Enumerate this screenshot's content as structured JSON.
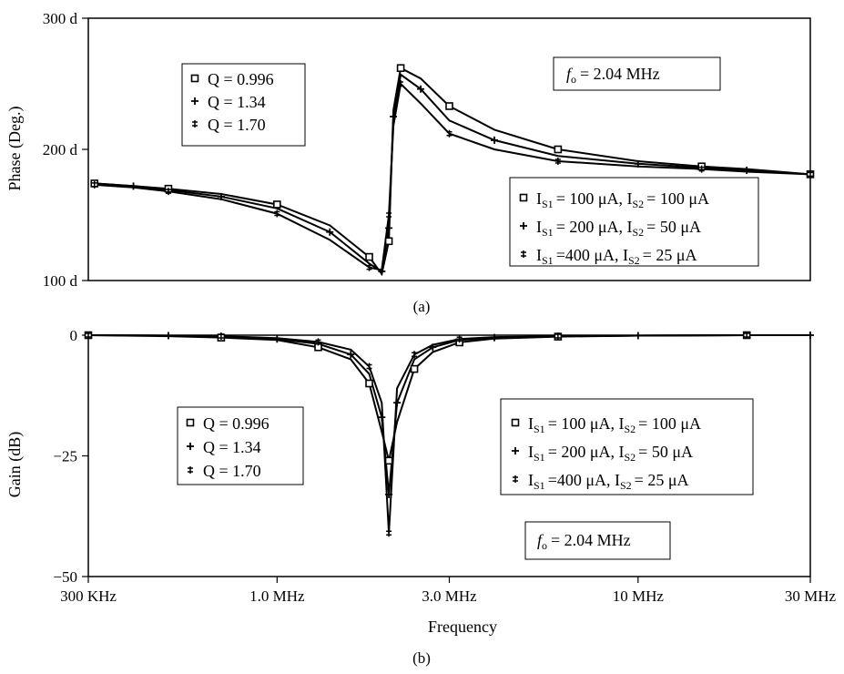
{
  "panel_a": {
    "caption": "(a)",
    "fo_label": "= 2.04 MHz",
    "fo_symbol": "f",
    "fo_sub": "o",
    "q_legend": [
      {
        "marker": "square",
        "label": "Q = 0.996"
      },
      {
        "marker": "plus",
        "label": "Q = 1.34"
      },
      {
        "marker": "doubleplus",
        "label": "Q = 1.70"
      }
    ],
    "i_legend": [
      {
        "marker": "square",
        "is1": "= 100 μA, I",
        "is2": "= 100 μA"
      },
      {
        "marker": "plus",
        "is1": "= 200 μA, I",
        "is2": "= 50 μA"
      },
      {
        "marker": "doubleplus",
        "is1": "=400 μA, I",
        "is2": "= 25 μA"
      }
    ]
  },
  "panel_b": {
    "caption": "(b)",
    "fo_label": "= 2.04 MHz",
    "fo_symbol": "f",
    "fo_sub": "o",
    "q_legend": [
      {
        "marker": "square",
        "label": "Q = 0.996"
      },
      {
        "marker": "plus",
        "label": "Q = 1.34"
      },
      {
        "marker": "doubleplus",
        "label": "Q = 1.70"
      }
    ],
    "i_legend": [
      {
        "marker": "square",
        "is1": "= 100 μA, I",
        "is2": "= 100 μA"
      },
      {
        "marker": "plus",
        "is1": "= 200 μA, I",
        "is2": "= 50 μA"
      },
      {
        "marker": "doubleplus",
        "is1": "=400 μA, I",
        "is2": "= 25 μA"
      }
    ]
  },
  "legend_sub": {
    "s1": "S1",
    "s2": "S2",
    "i": "I"
  },
  "chart_data": [
    {
      "type": "line",
      "ylabel": "Phase (Deg.)",
      "xscale": "log",
      "xlim": [
        300000,
        30000000
      ],
      "ylim": [
        100,
        300
      ],
      "yticks": [
        {
          "v": 100,
          "label": "100 d"
        },
        {
          "v": 200,
          "label": "200 d"
        },
        {
          "v": 300,
          "label": "300 d"
        }
      ],
      "grid": false,
      "series": [
        {
          "name": "Q = 0.996",
          "marker": "square",
          "x": [
            312000,
            400000,
            500000,
            700000,
            1000000,
            1400000,
            1800000,
            1950000,
            2040000,
            2100000,
            2200000,
            2500000,
            3000000,
            4000000,
            6000000,
            10000000,
            15000000,
            20000000,
            30000000
          ],
          "y": [
            174,
            172,
            170,
            166,
            158,
            142,
            118,
            105,
            130,
            230,
            262,
            254,
            233,
            215,
            200,
            191,
            187,
            185,
            181
          ]
        },
        {
          "name": "Q = 1.34",
          "marker": "plus",
          "x": [
            312000,
            400000,
            500000,
            700000,
            1000000,
            1400000,
            1800000,
            1950000,
            2040000,
            2100000,
            2200000,
            2500000,
            3000000,
            4000000,
            6000000,
            10000000,
            15000000,
            20000000,
            30000000
          ],
          "y": [
            174,
            172,
            169,
            164,
            155,
            137,
            113,
            107,
            140,
            225,
            257,
            246,
            222,
            207,
            195,
            189,
            186,
            184,
            181
          ]
        },
        {
          "name": "Q = 1.70",
          "marker": "doubleplus",
          "x": [
            312000,
            400000,
            500000,
            700000,
            1000000,
            1400000,
            1800000,
            1950000,
            2040000,
            2100000,
            2200000,
            2500000,
            3000000,
            4000000,
            6000000,
            10000000,
            15000000,
            20000000,
            30000000
          ],
          "y": [
            173,
            171,
            168,
            162,
            151,
            131,
            110,
            108,
            150,
            218,
            250,
            235,
            212,
            200,
            191,
            187,
            185,
            183,
            181
          ]
        }
      ]
    },
    {
      "type": "line",
      "xlabel": "Frequency",
      "ylabel": "Gain (dB)",
      "xscale": "log",
      "xlim": [
        300000,
        30000000
      ],
      "ylim": [
        -50,
        0
      ],
      "xticks": [
        {
          "v": 300000,
          "label": "300 KHz"
        },
        {
          "v": 1000000,
          "label": "1.0 MHz"
        },
        {
          "v": 3000000,
          "label": "3.0 MHz"
        },
        {
          "v": 10000000,
          "label": "10 MHz"
        },
        {
          "v": 30000000,
          "label": "30 MHz"
        }
      ],
      "yticks": [
        {
          "v": 0,
          "label": "0"
        },
        {
          "v": -25,
          "label": "−25"
        },
        {
          "v": -50,
          "label": "−50"
        }
      ],
      "grid": false,
      "series": [
        {
          "name": "Q = 0.996",
          "marker": "square",
          "x": [
            300000,
            500000,
            700000,
            1000000,
            1300000,
            1600000,
            1800000,
            1950000,
            2040000,
            2150000,
            2400000,
            2700000,
            3200000,
            4000000,
            6000000,
            10000000,
            20000000,
            30000000
          ],
          "y": [
            0,
            -0.2,
            -0.5,
            -1,
            -2.5,
            -5,
            -10,
            -20,
            -26,
            -18,
            -7,
            -3.5,
            -1.5,
            -0.7,
            -0.3,
            -0.1,
            0,
            0
          ]
        },
        {
          "name": "Q = 1.34",
          "marker": "plus",
          "x": [
            300000,
            500000,
            700000,
            1000000,
            1300000,
            1600000,
            1800000,
            1950000,
            2040000,
            2150000,
            2400000,
            2700000,
            3200000,
            4000000,
            6000000,
            10000000,
            20000000,
            30000000
          ],
          "y": [
            0,
            -0.1,
            -0.3,
            -0.8,
            -1.8,
            -4,
            -8,
            -17,
            -33,
            -14,
            -5,
            -2.5,
            -1,
            -0.5,
            -0.2,
            -0.1,
            0,
            0
          ]
        },
        {
          "name": "Q = 1.70",
          "marker": "doubleplus",
          "x": [
            300000,
            500000,
            700000,
            1000000,
            1300000,
            1600000,
            1800000,
            1950000,
            2040000,
            2150000,
            2400000,
            2700000,
            3200000,
            4000000,
            6000000,
            10000000,
            20000000,
            30000000
          ],
          "y": [
            0,
            -0.1,
            -0.2,
            -0.6,
            -1.4,
            -3,
            -6.5,
            -14,
            -41,
            -11,
            -4,
            -2,
            -0.8,
            -0.4,
            -0.2,
            -0.1,
            0,
            0
          ]
        }
      ]
    }
  ]
}
